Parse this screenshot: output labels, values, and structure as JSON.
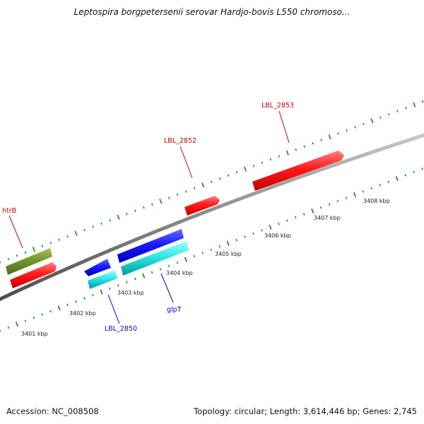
{
  "title": "Leptospira borgpetersenii serovar Hardjo-bovis L550 chromoso...",
  "footer": {
    "accession": "Accession: NC_008508",
    "summary": "Topology: circular; Length: 3,614,446 bp; Genes: 2,745"
  },
  "scale": {
    "ticks": [
      {
        "label": "3401 kbp",
        "kbp": 3401
      },
      {
        "label": "3402 kbp",
        "kbp": 3402
      },
      {
        "label": "3403 kbp",
        "kbp": 3403
      },
      {
        "label": "3404 kbp",
        "kbp": 3404
      },
      {
        "label": "3405 kbp",
        "kbp": 3405
      },
      {
        "label": "3406 kbp",
        "kbp": 3406
      },
      {
        "label": "3407 kbp",
        "kbp": 3407
      },
      {
        "label": "3408 kbp",
        "kbp": 3408
      }
    ]
  },
  "genes": [
    {
      "label": "htrB",
      "strand": "forward",
      "color": "#ff1a1a"
    },
    {
      "label": "LBL_2852",
      "strand": "forward",
      "color": "#ff1a1a"
    },
    {
      "label": "LBL_2853",
      "strand": "forward",
      "color": "#ff1a1a"
    },
    {
      "label": "LBL_2850",
      "strand": "reverse",
      "color": "#1a1aff"
    },
    {
      "label": "glpT",
      "strand": "reverse",
      "color": "#1a1aff"
    }
  ],
  "colors": {
    "forward_cds": "#ff1a1a",
    "reverse_cds": "#1a1aff",
    "forward_rna": "#7a9a2a",
    "reverse_rna": "#29e0e0",
    "tick_marks": "#2e8b2e",
    "backbone": "#8a8a8a",
    "forward_label": "#cc0000",
    "reverse_label": "#0000cc"
  }
}
